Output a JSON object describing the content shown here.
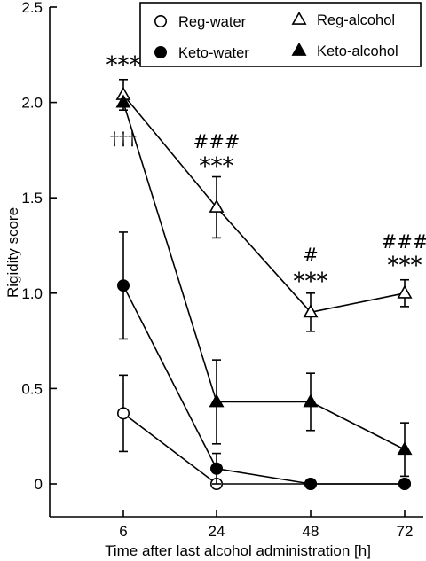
{
  "chart_data": {
    "type": "line",
    "xlabel": "Time after last alcohol administration [h]",
    "ylabel": "Rigidity score",
    "categories": [
      "6",
      "24",
      "48",
      "72"
    ],
    "ylim": [
      0,
      2.5
    ],
    "yticks": [
      "0",
      "0.5",
      "1.0",
      "1.5",
      "2.0",
      "2.5"
    ],
    "legend_position": "top-right",
    "series": [
      {
        "name": "Reg-water",
        "marker": "circle-open",
        "values": [
          0.37,
          0.0,
          0.0,
          0.0
        ],
        "err": [
          0.2,
          0.0,
          0.0,
          0.0
        ]
      },
      {
        "name": "Keto-water",
        "marker": "circle-filled",
        "values": [
          1.04,
          0.08,
          0.0,
          0.0
        ],
        "err": [
          0.28,
          0.08,
          0.0,
          0.0
        ]
      },
      {
        "name": "Reg-alcohol",
        "marker": "triangle-open",
        "values": [
          2.04,
          1.45,
          0.9,
          1.0
        ],
        "err": [
          0.08,
          0.16,
          0.1,
          0.07
        ]
      },
      {
        "name": "Keto-alcohol",
        "marker": "triangle-filled",
        "values": [
          2.0,
          0.43,
          0.43,
          0.18
        ],
        "err": [
          0.0,
          0.22,
          0.15,
          0.14
        ]
      }
    ],
    "annotations": [
      {
        "x": "6",
        "text": "***"
      },
      {
        "x": "6",
        "text": "†††"
      },
      {
        "x": "24",
        "text": "###"
      },
      {
        "x": "24",
        "text": "***"
      },
      {
        "x": "48",
        "text": "#"
      },
      {
        "x": "48",
        "text": "***"
      },
      {
        "x": "72",
        "text": "###"
      },
      {
        "x": "72",
        "text": "***"
      }
    ]
  }
}
